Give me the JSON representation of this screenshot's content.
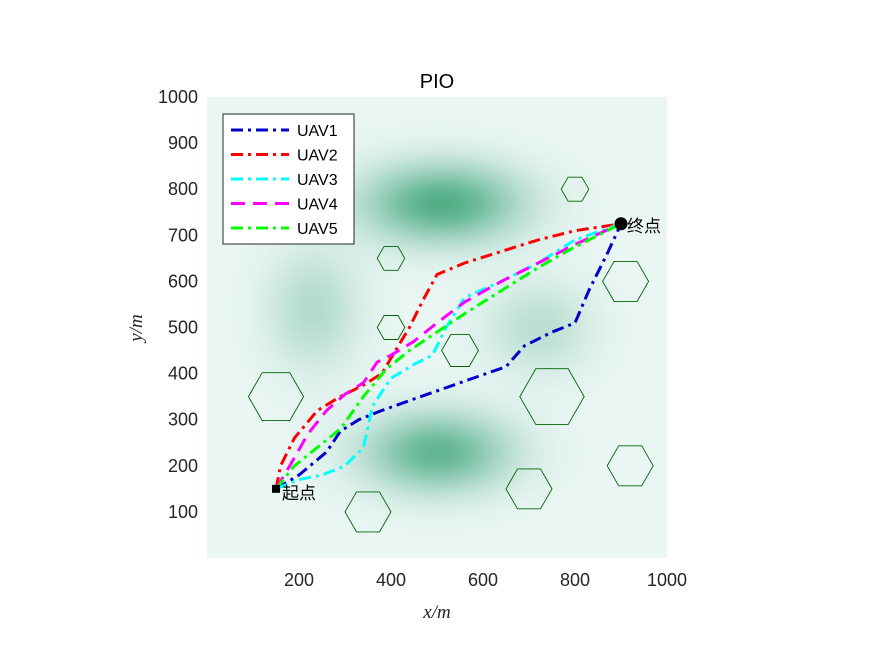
{
  "chart_data": {
    "type": "line",
    "title": "PIO",
    "xlabel": "x/m",
    "ylabel": "y/m",
    "xlim": [
      0,
      1000
    ],
    "ylim": [
      0,
      1000
    ],
    "xticks": [
      200,
      400,
      600,
      800,
      1000
    ],
    "yticks": [
      100,
      200,
      300,
      400,
      500,
      600,
      700,
      800,
      900,
      1000
    ],
    "xtick_labels": [
      "200",
      "400",
      "600",
      "800",
      "1000"
    ],
    "ytick_labels": [
      "100",
      "200",
      "300",
      "400",
      "500",
      "600",
      "700",
      "800",
      "900",
      "1000"
    ],
    "grid": false,
    "legend_position": "top-left",
    "background_colors": {
      "base": "#eaf6f4",
      "blob": "#2e9d6e"
    },
    "terrain_peaks": [
      {
        "x": 510,
        "y": 770,
        "sx": 120,
        "sy": 60,
        "strength": 0.95
      },
      {
        "x": 500,
        "y": 230,
        "sx": 110,
        "sy": 60,
        "strength": 0.85
      },
      {
        "x": 230,
        "y": 540,
        "sx": 70,
        "sy": 90,
        "strength": 0.35
      },
      {
        "x": 720,
        "y": 500,
        "sx": 80,
        "sy": 70,
        "strength": 0.3
      }
    ],
    "obstacles": [
      {
        "x": 800,
        "y": 800,
        "r": 30
      },
      {
        "x": 400,
        "y": 650,
        "r": 30
      },
      {
        "x": 910,
        "y": 600,
        "r": 50
      },
      {
        "x": 400,
        "y": 500,
        "r": 30
      },
      {
        "x": 550,
        "y": 450,
        "r": 40
      },
      {
        "x": 150,
        "y": 350,
        "r": 60
      },
      {
        "x": 750,
        "y": 350,
        "r": 70
      },
      {
        "x": 920,
        "y": 200,
        "r": 50
      },
      {
        "x": 700,
        "y": 150,
        "r": 50
      },
      {
        "x": 350,
        "y": 100,
        "r": 50
      }
    ],
    "obstacle_color": "#006400",
    "start": {
      "x": 150,
      "y": 150,
      "label": "起点"
    },
    "end": {
      "x": 900,
      "y": 725,
      "label": "终点"
    },
    "series": [
      {
        "name": "UAV1",
        "color": "#0000cd",
        "dash": "dashdot",
        "x": [
          150,
          200,
          260,
          290,
          330,
          380,
          450,
          550,
          650,
          690,
          750,
          800,
          830,
          870,
          900
        ],
        "y": [
          150,
          180,
          230,
          275,
          300,
          320,
          345,
          380,
          415,
          460,
          490,
          510,
          580,
          660,
          725
        ]
      },
      {
        "name": "UAV2",
        "color": "#ff0000",
        "dash": "dashdot",
        "x": [
          150,
          160,
          190,
          240,
          290,
          340,
          380,
          410,
          440,
          470,
          500,
          560,
          640,
          720,
          800,
          900
        ],
        "y": [
          150,
          200,
          260,
          320,
          350,
          375,
          400,
          450,
          500,
          560,
          615,
          640,
          665,
          690,
          710,
          725
        ]
      },
      {
        "name": "UAV3",
        "color": "#00ffff",
        "dash": "dashdot",
        "x": [
          150,
          200,
          250,
          300,
          340,
          360,
          400,
          450,
          490,
          520,
          560,
          640,
          720,
          800,
          900
        ],
        "y": [
          150,
          170,
          180,
          200,
          240,
          330,
          390,
          420,
          440,
          500,
          565,
          600,
          640,
          690,
          725
        ]
      },
      {
        "name": "UAV4",
        "color": "#ff00ff",
        "dash": "dash",
        "x": [
          150,
          180,
          220,
          260,
          300,
          340,
          370,
          400,
          450,
          500,
          560,
          640,
          720,
          800,
          900
        ],
        "y": [
          150,
          200,
          270,
          320,
          355,
          380,
          425,
          440,
          470,
          510,
          555,
          600,
          640,
          680,
          725
        ]
      },
      {
        "name": "UAV5",
        "color": "#00ff00",
        "dash": "dashdot",
        "x": [
          150,
          190,
          240,
          290,
          340,
          390,
          440,
          500,
          560,
          640,
          720,
          800,
          900
        ],
        "y": [
          150,
          200,
          240,
          280,
          350,
          410,
          450,
          490,
          530,
          580,
          630,
          675,
          725
        ]
      }
    ]
  }
}
